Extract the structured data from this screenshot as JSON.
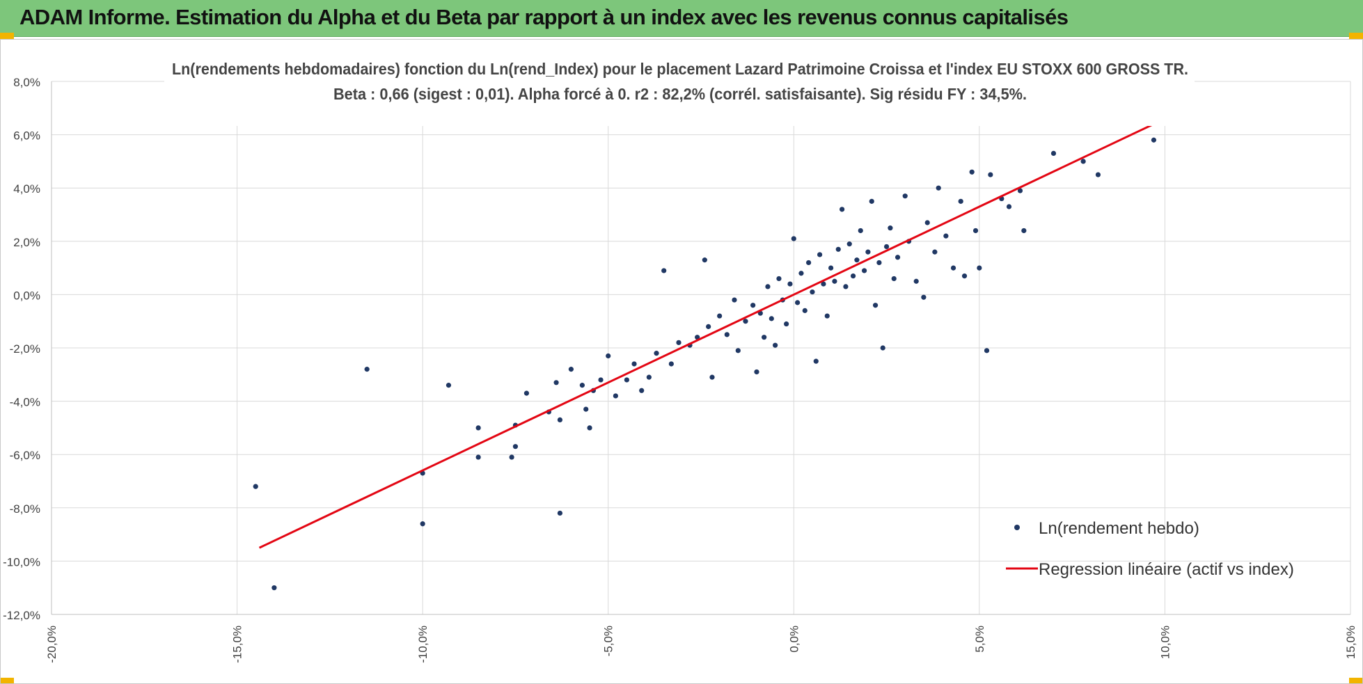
{
  "header": {
    "title": "ADAM Informe. Estimation du Alpha et du Beta par rapport à un index avec les revenus connus capitalisés"
  },
  "colors": {
    "banner": "#7dc67b",
    "corner_accent": "#f2b400",
    "scatter": "#203864",
    "regression": "#e30613",
    "grid": "#d9d9d9"
  },
  "chart_data": {
    "type": "scatter",
    "title_line1": "Ln(rendements hebdomadaires) fonction du Ln(rend_Index) pour le placement Lazard Patrimoine Croissa et l'index EU STOXX 600 GROSS TR.",
    "title_line2": "Beta : 0,66 (sigest : 0,01).  Alpha forcé à 0.  r2 : 82,2% (corrél. satisfaisante). Sig résidu FY : 34,5%.",
    "xlim": [
      -20,
      15
    ],
    "ylim": [
      -12,
      8
    ],
    "x_ticks": [
      -20,
      -15,
      -10,
      -5,
      0,
      5,
      10,
      15
    ],
    "y_ticks": [
      -12,
      -10,
      -8,
      -6,
      -4,
      -2,
      0,
      2,
      4,
      6,
      8
    ],
    "x_tick_labels": [
      "-20,0%",
      "-15,0%",
      "-10,0%",
      "-5,0%",
      "0,0%",
      "5,0%",
      "10,0%",
      "15,0%"
    ],
    "y_tick_labels": [
      "-12,0%",
      "-10,0%",
      "-8,0%",
      "-6,0%",
      "-4,0%",
      "-2,0%",
      "0,0%",
      "2,0%",
      "4,0%",
      "6,0%",
      "8,0%"
    ],
    "grid": true,
    "legend_position": "bottom-right",
    "legend": [
      "Ln(rendement hebdo)",
      "Regression linéaire (actif vs index)"
    ],
    "series": [
      {
        "name": "Ln(rendement hebdo)",
        "kind": "scatter",
        "points": [
          [
            -14.5,
            -7.2
          ],
          [
            -14.0,
            -11.0
          ],
          [
            -11.5,
            -2.8
          ],
          [
            -10.0,
            -6.7
          ],
          [
            -10.0,
            -8.6
          ],
          [
            -9.3,
            -3.4
          ],
          [
            -8.5,
            -5.0
          ],
          [
            -8.5,
            -6.1
          ],
          [
            -7.6,
            -6.1
          ],
          [
            -7.5,
            -5.7
          ],
          [
            -7.5,
            -4.9
          ],
          [
            -7.2,
            -3.7
          ],
          [
            -6.6,
            -4.4
          ],
          [
            -6.4,
            -3.3
          ],
          [
            -6.3,
            -8.2
          ],
          [
            -6.3,
            -4.7
          ],
          [
            -6.0,
            -2.8
          ],
          [
            -5.7,
            -3.4
          ],
          [
            -5.6,
            -4.3
          ],
          [
            -5.5,
            -5.0
          ],
          [
            -5.4,
            -3.6
          ],
          [
            -5.2,
            -3.2
          ],
          [
            -5.0,
            -2.3
          ],
          [
            -4.8,
            -3.8
          ],
          [
            -4.5,
            -3.2
          ],
          [
            -4.3,
            -2.6
          ],
          [
            -4.1,
            -3.6
          ],
          [
            -3.9,
            -3.1
          ],
          [
            -3.7,
            -2.2
          ],
          [
            -3.5,
            0.9
          ],
          [
            -3.3,
            -2.6
          ],
          [
            -3.1,
            -1.8
          ],
          [
            -2.8,
            -1.9
          ],
          [
            -2.6,
            -1.6
          ],
          [
            -2.4,
            1.3
          ],
          [
            -2.3,
            -1.2
          ],
          [
            -2.2,
            -3.1
          ],
          [
            -2.0,
            -0.8
          ],
          [
            -1.8,
            -1.5
          ],
          [
            -1.6,
            -0.2
          ],
          [
            -1.5,
            -2.1
          ],
          [
            -1.3,
            -1.0
          ],
          [
            -1.1,
            -0.4
          ],
          [
            -1.0,
            -2.9
          ],
          [
            -0.9,
            -0.7
          ],
          [
            -0.8,
            -1.6
          ],
          [
            -0.7,
            0.3
          ],
          [
            -0.6,
            -0.9
          ],
          [
            -0.5,
            -1.9
          ],
          [
            -0.4,
            0.6
          ],
          [
            -0.3,
            -0.2
          ],
          [
            -0.2,
            -1.1
          ],
          [
            -0.1,
            0.4
          ],
          [
            0.0,
            2.1
          ],
          [
            0.1,
            -0.3
          ],
          [
            0.2,
            0.8
          ],
          [
            0.3,
            -0.6
          ],
          [
            0.4,
            1.2
          ],
          [
            0.5,
            0.1
          ],
          [
            0.6,
            -2.5
          ],
          [
            0.7,
            1.5
          ],
          [
            0.8,
            0.4
          ],
          [
            0.9,
            -0.8
          ],
          [
            1.0,
            1.0
          ],
          [
            1.1,
            0.5
          ],
          [
            1.2,
            1.7
          ],
          [
            1.3,
            3.2
          ],
          [
            1.4,
            0.3
          ],
          [
            1.5,
            1.9
          ],
          [
            1.6,
            0.7
          ],
          [
            1.7,
            1.3
          ],
          [
            1.8,
            2.4
          ],
          [
            1.9,
            0.9
          ],
          [
            2.0,
            1.6
          ],
          [
            2.1,
            3.5
          ],
          [
            2.2,
            -0.4
          ],
          [
            2.3,
            1.2
          ],
          [
            2.4,
            -2.0
          ],
          [
            2.5,
            1.8
          ],
          [
            2.6,
            2.5
          ],
          [
            2.7,
            0.6
          ],
          [
            2.8,
            1.4
          ],
          [
            3.0,
            3.7
          ],
          [
            3.1,
            2.0
          ],
          [
            3.3,
            0.5
          ],
          [
            3.5,
            -0.1
          ],
          [
            3.6,
            2.7
          ],
          [
            3.8,
            1.6
          ],
          [
            3.9,
            4.0
          ],
          [
            4.1,
            2.2
          ],
          [
            4.3,
            1.0
          ],
          [
            4.5,
            3.5
          ],
          [
            4.6,
            0.7
          ],
          [
            4.8,
            4.6
          ],
          [
            4.9,
            2.4
          ],
          [
            5.0,
            1.0
          ],
          [
            5.2,
            -2.1
          ],
          [
            5.3,
            4.5
          ],
          [
            5.6,
            3.6
          ],
          [
            5.8,
            3.3
          ],
          [
            6.1,
            3.9
          ],
          [
            6.2,
            2.4
          ],
          [
            7.0,
            5.3
          ],
          [
            7.8,
            5.0
          ],
          [
            8.2,
            4.5
          ],
          [
            9.7,
            5.8
          ]
        ]
      },
      {
        "name": "Regression linéaire (actif vs index)",
        "kind": "line",
        "points": [
          [
            -14.4,
            -9.5
          ],
          [
            9.7,
            6.4
          ]
        ]
      }
    ]
  }
}
